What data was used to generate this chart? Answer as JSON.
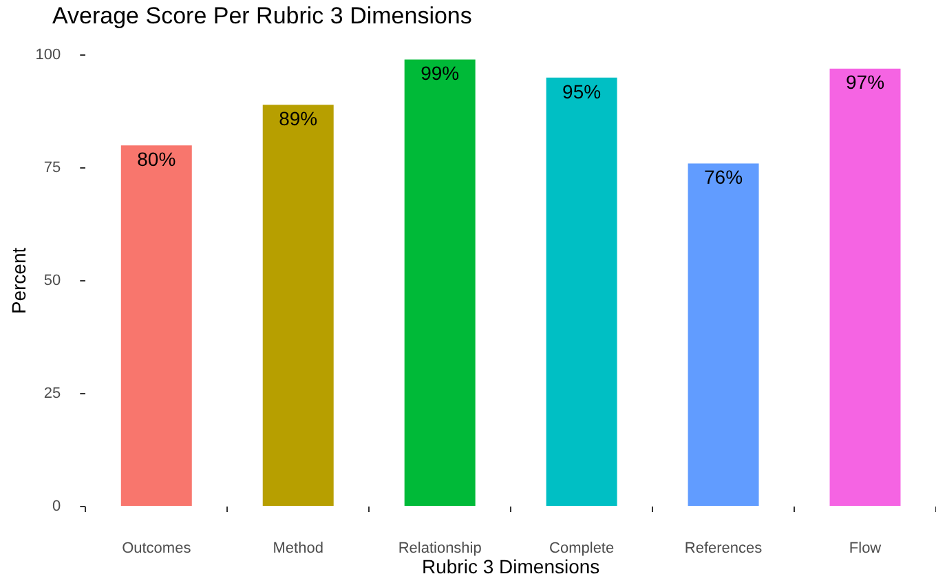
{
  "chart_data": {
    "type": "bar",
    "title": "Average Score Per Rubric 3 Dimensions",
    "xlabel": "Rubric 3 Dimensions",
    "ylabel": "Percent",
    "categories": [
      "Outcomes",
      "Method",
      "Relationship",
      "Complete",
      "References",
      "Flow"
    ],
    "values": [
      80,
      89,
      99,
      95,
      76,
      97
    ],
    "value_labels": [
      "80%",
      "89%",
      "99%",
      "95%",
      "76%",
      "97%"
    ],
    "colors": [
      "#f8766d",
      "#b79f00",
      "#00ba38",
      "#00bfc4",
      "#619cff",
      "#f564e3"
    ],
    "ylim": [
      0,
      100
    ],
    "yticks": [
      0,
      25,
      50,
      75,
      100
    ],
    "grid": false
  }
}
